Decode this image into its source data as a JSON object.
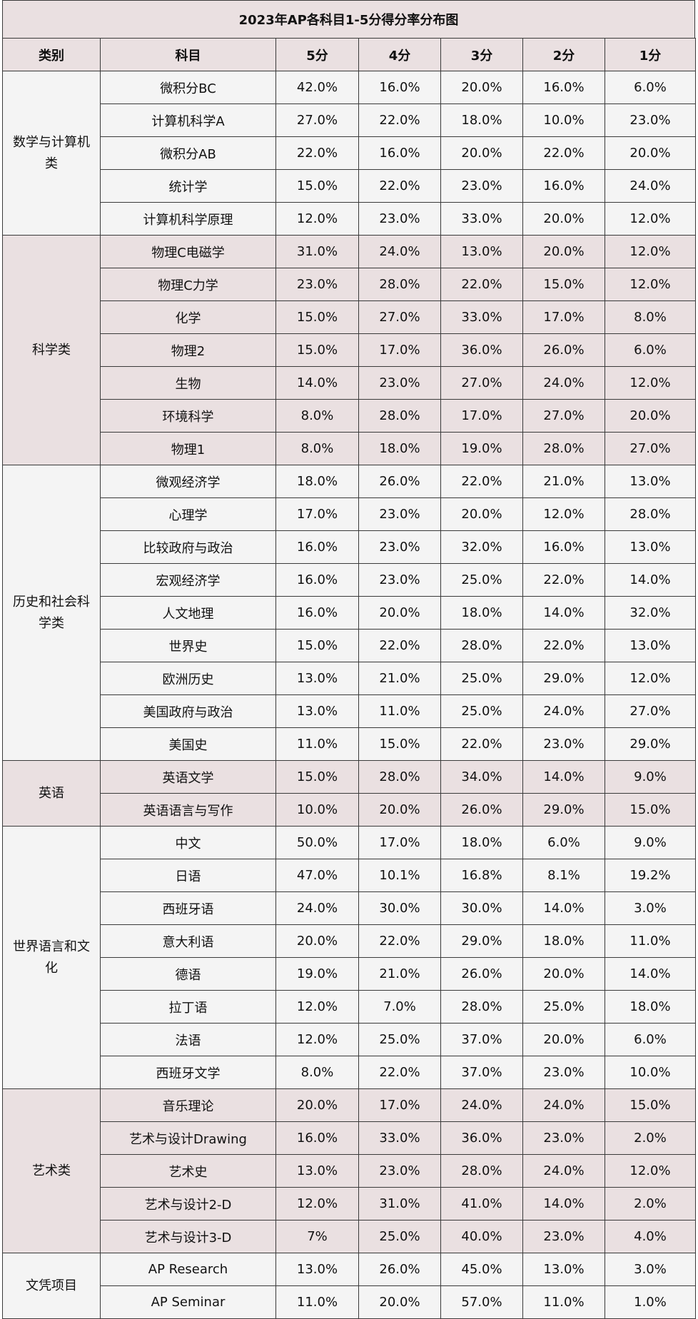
{
  "title": "2023年AP各科目1-5分得分率分布图",
  "headers": [
    "类别",
    "科目",
    "5分",
    "4分",
    "3分",
    "2分",
    "1分"
  ],
  "groups": [
    {
      "category": "数学与计算机类",
      "rows": [
        [
          "微积分BC",
          "42.0%",
          "16.0%",
          "20.0%",
          "16.0%",
          "6.0%"
        ],
        [
          "计算机科学A",
          "27.0%",
          "22.0%",
          "18.0%",
          "10.0%",
          "23.0%"
        ],
        [
          "微积分AB",
          "22.0%",
          "16.0%",
          "20.0%",
          "22.0%",
          "20.0%"
        ],
        [
          "统计学",
          "15.0%",
          "22.0%",
          "23.0%",
          "16.0%",
          "24.0%"
        ],
        [
          "计算机科学原理",
          "12.0%",
          "23.0%",
          "33.0%",
          "20.0%",
          "12.0%"
        ]
      ]
    },
    {
      "category": "科学类",
      "rows": [
        [
          "物理C电磁学",
          "31.0%",
          "24.0%",
          "13.0%",
          "20.0%",
          "12.0%"
        ],
        [
          "物理C力学",
          "23.0%",
          "28.0%",
          "22.0%",
          "15.0%",
          "12.0%"
        ],
        [
          "化学",
          "15.0%",
          "27.0%",
          "33.0%",
          "17.0%",
          "8.0%"
        ],
        [
          "物理2",
          "15.0%",
          "17.0%",
          "36.0%",
          "26.0%",
          "6.0%"
        ],
        [
          "生物",
          "14.0%",
          "23.0%",
          "27.0%",
          "24.0%",
          "12.0%"
        ],
        [
          "环境科学",
          "8.0%",
          "28.0%",
          "17.0%",
          "27.0%",
          "20.0%"
        ],
        [
          "物理1",
          "8.0%",
          "18.0%",
          "19.0%",
          "28.0%",
          "27.0%"
        ]
      ]
    },
    {
      "category": "历史和社会科学类",
      "rows": [
        [
          "微观经济学",
          "18.0%",
          "26.0%",
          "22.0%",
          "21.0%",
          "13.0%"
        ],
        [
          "心理学",
          "17.0%",
          "23.0%",
          "20.0%",
          "12.0%",
          "28.0%"
        ],
        [
          "比较政府与政治",
          "16.0%",
          "23.0%",
          "32.0%",
          "16.0%",
          "13.0%"
        ],
        [
          "宏观经济学",
          "16.0%",
          "23.0%",
          "25.0%",
          "22.0%",
          "14.0%"
        ],
        [
          "人文地理",
          "16.0%",
          "20.0%",
          "18.0%",
          "14.0%",
          "32.0%"
        ],
        [
          "世界史",
          "15.0%",
          "22.0%",
          "28.0%",
          "22.0%",
          "13.0%"
        ],
        [
          "欧洲历史",
          "13.0%",
          "21.0%",
          "25.0%",
          "29.0%",
          "12.0%"
        ],
        [
          "美国政府与政治",
          "13.0%",
          "11.0%",
          "25.0%",
          "24.0%",
          "27.0%"
        ],
        [
          "美国史",
          "11.0%",
          "15.0%",
          "22.0%",
          "23.0%",
          "29.0%"
        ]
      ]
    },
    {
      "category": "英语",
      "rows": [
        [
          "英语文学",
          "15.0%",
          "28.0%",
          "34.0%",
          "14.0%",
          "9.0%"
        ],
        [
          "英语语言与写作",
          "10.0%",
          "20.0%",
          "26.0%",
          "29.0%",
          "15.0%"
        ]
      ]
    },
    {
      "category": "世界语言和文化",
      "rows": [
        [
          "中文",
          "50.0%",
          "17.0%",
          "18.0%",
          "6.0%",
          "9.0%"
        ],
        [
          "日语",
          "47.0%",
          "10.1%",
          "16.8%",
          "8.1%",
          "19.2%"
        ],
        [
          "西班牙语",
          "24.0%",
          "30.0%",
          "30.0%",
          "14.0%",
          "3.0%"
        ],
        [
          "意大利语",
          "20.0%",
          "22.0%",
          "29.0%",
          "18.0%",
          "11.0%"
        ],
        [
          "德语",
          "19.0%",
          "21.0%",
          "26.0%",
          "20.0%",
          "14.0%"
        ],
        [
          "拉丁语",
          "12.0%",
          "7.0%",
          "28.0%",
          "25.0%",
          "18.0%"
        ],
        [
          "法语",
          "12.0%",
          "25.0%",
          "37.0%",
          "20.0%",
          "6.0%"
        ],
        [
          "西班牙文学",
          "8.0%",
          "22.0%",
          "37.0%",
          "23.0%",
          "10.0%"
        ]
      ]
    },
    {
      "category": "艺术类",
      "rows": [
        [
          "音乐理论",
          "20.0%",
          "17.0%",
          "24.0%",
          "24.0%",
          "15.0%"
        ],
        [
          "艺术与设计Drawing",
          "16.0%",
          "33.0%",
          "36.0%",
          "23.0%",
          "2.0%"
        ],
        [
          "艺术史",
          "13.0%",
          "23.0%",
          "28.0%",
          "24.0%",
          "12.0%"
        ],
        [
          "艺术与设计2-D",
          "12.0%",
          "31.0%",
          "41.0%",
          "14.0%",
          "2.0%"
        ],
        [
          "艺术与设计3-D",
          "7%",
          "25.0%",
          "40.0%",
          "23.0%",
          "4.0%"
        ]
      ]
    },
    {
      "category": "文凭项目",
      "rows": [
        [
          "AP Research",
          "13.0%",
          "26.0%",
          "45.0%",
          "13.0%",
          "3.0%"
        ],
        [
          "AP Seminar",
          "11.0%",
          "20.0%",
          "57.0%",
          "11.0%",
          "1.0%"
        ]
      ]
    }
  ]
}
